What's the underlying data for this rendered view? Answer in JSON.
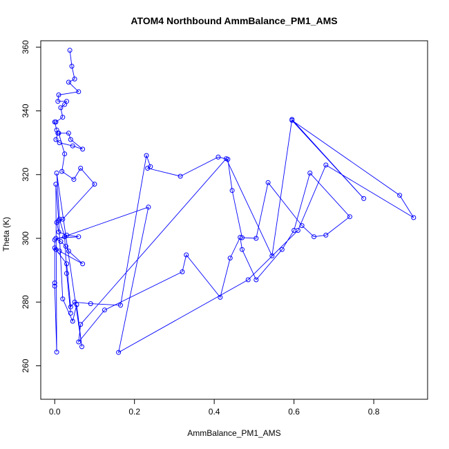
{
  "chart_data": {
    "type": "scatter",
    "title": "ATOM4 Northbound AmmBalance_PM1_AMS",
    "xlabel": "AmmBalance_PM1_AMS",
    "ylabel": "Theta (K)",
    "xlim": [
      -0.035,
      0.935
    ],
    "ylim": [
      249.5,
      362.0
    ],
    "xticks": [
      0.0,
      0.2,
      0.4,
      0.6,
      0.8
    ],
    "xtick_labels": [
      "0.0",
      "0.2",
      "0.4",
      "0.6",
      "0.8"
    ],
    "yticks": [
      260,
      280,
      300,
      320,
      340,
      360
    ],
    "ytick_labels": [
      "260",
      "280",
      "300",
      "320",
      "340",
      "360"
    ],
    "grid": false,
    "legend": "none",
    "style": "points-and-lines",
    "color": "#0000ff",
    "series": [
      {
        "x": [
          0.038,
          0.043,
          0.05,
          0.035,
          0.06,
          0.01,
          0.008,
          0.03,
          0.025,
          0.015,
          0.02,
          0.003,
          0.0,
          0.005,
          0.008,
          0.003,
          0.012,
          0.045,
          0.07,
          0.04,
          0.035,
          0.01,
          0.025,
          0.018,
          0.048,
          0.065,
          0.1,
          0.02,
          0.005,
          0.01,
          0.03,
          0.06,
          0.003,
          0.015,
          0.028,
          0.035,
          0.07,
          0.012,
          0.0,
          0.003,
          0.03,
          0.04,
          0.05,
          0.09,
          0.165,
          0.23,
          0.24,
          0.233,
          0.315,
          0.41,
          0.434,
          0.445,
          0.47,
          0.505,
          0.535,
          0.62,
          0.65,
          0.68,
          0.74,
          0.64,
          0.6,
          0.57,
          0.505,
          0.47,
          0.465,
          0.44,
          0.415,
          0.33,
          0.32,
          0.125,
          0.06,
          0.065,
          0.43,
          0.545,
          0.595,
          0.775,
          0.595,
          0.865,
          0.9,
          0.68,
          0.61,
          0.485,
          0.16,
          0.235,
          0.0,
          0.0,
          0.0,
          0.005,
          0.003,
          0.01,
          0.02,
          0.045,
          0.055,
          0.068,
          0.005,
          0.012,
          0.025,
          0.03,
          0.04
        ],
        "y": [
          359.0,
          354.0,
          350.0,
          349.0,
          346.0,
          345.0,
          343.0,
          343.0,
          342.0,
          341.0,
          338.0,
          336.5,
          336.5,
          334.0,
          333.0,
          331.0,
          330.0,
          329.0,
          328.0,
          331.0,
          333.0,
          333.0,
          326.5,
          321.0,
          318.5,
          322.0,
          317.0,
          306.0,
          305.0,
          302.0,
          301.0,
          300.5,
          300.0,
          299.0,
          297.5,
          296.0,
          292.0,
          296.0,
          297.0,
          296.5,
          292.0,
          278.5,
          280.0,
          279.5,
          279.0,
          326.0,
          322.5,
          322.0,
          319.5,
          325.5,
          324.8,
          315.0,
          300.2,
          300.0,
          317.5,
          304.0,
          300.5,
          301.0,
          306.8,
          320.5,
          302.5,
          296.5,
          287.0,
          296.5,
          300.3,
          293.8,
          281.5,
          294.8,
          289.5,
          277.5,
          267.5,
          273.0,
          325.0,
          294.5,
          337.3,
          312.5,
          337.0,
          313.5,
          306.5,
          323.0,
          302.5,
          287.0,
          264.2,
          309.8,
          299.5,
          286.0,
          285.0,
          264.3,
          317.0,
          305.5,
          281.0,
          274.0,
          279.2,
          266.0,
          320.5,
          306.0,
          300.5,
          289.0,
          276.5
        ]
      }
    ]
  }
}
